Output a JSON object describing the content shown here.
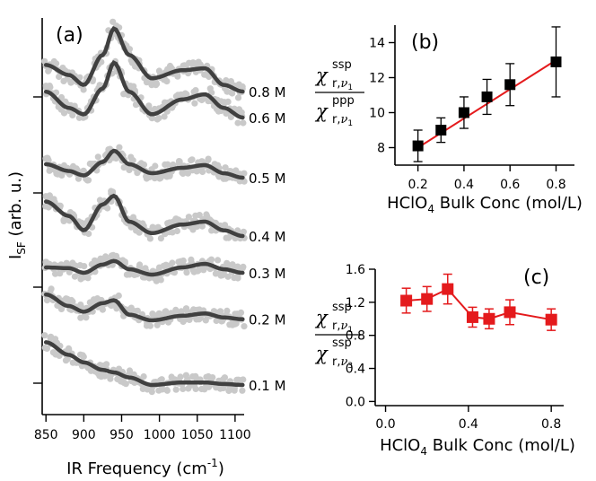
{
  "chart_data": [
    {
      "panel": "(a)",
      "type": "line",
      "xlabel": "IR Frequency (cm",
      "xlabel_sup": "-1",
      "xlabel_close": ")",
      "ylabel_main": "I",
      "ylabel_sub": "SF",
      "ylabel_rest": " (arb. u.)",
      "xlim": [
        845,
        1112
      ],
      "xticks": [
        850,
        900,
        950,
        1000,
        1050,
        1100
      ],
      "series": [
        {
          "name": "0.8 M",
          "x": [
            850,
            880,
            900,
            925,
            940,
            960,
            990,
            1030,
            1060,
            1085,
            1110
          ],
          "y": [
            0.4,
            0.25,
            0.1,
            0.55,
            0.95,
            0.55,
            0.2,
            0.32,
            0.35,
            0.1,
            0.0
          ]
        },
        {
          "name": "0.6 M",
          "x": [
            850,
            880,
            900,
            925,
            940,
            960,
            990,
            1030,
            1060,
            1085,
            1110
          ],
          "y": [
            0.4,
            0.15,
            0.05,
            0.45,
            0.85,
            0.4,
            0.05,
            0.28,
            0.36,
            0.15,
            0.0
          ]
        },
        {
          "name": "0.5 M",
          "x": [
            850,
            880,
            900,
            925,
            940,
            960,
            990,
            1030,
            1060,
            1085,
            1110
          ],
          "y": [
            0.3,
            0.15,
            0.05,
            0.35,
            0.6,
            0.3,
            0.1,
            0.22,
            0.28,
            0.1,
            0.0
          ]
        },
        {
          "name": "0.4 M",
          "x": [
            850,
            880,
            900,
            925,
            940,
            960,
            990,
            1030,
            1060,
            1085,
            1110
          ],
          "y": [
            0.6,
            0.35,
            0.1,
            0.55,
            0.7,
            0.25,
            0.05,
            0.2,
            0.25,
            0.1,
            0.0
          ]
        },
        {
          "name": "0.3 M",
          "x": [
            850,
            880,
            900,
            925,
            940,
            960,
            990,
            1030,
            1060,
            1085,
            1110
          ],
          "y": [
            0.2,
            0.18,
            0.05,
            0.28,
            0.38,
            0.15,
            0.0,
            0.2,
            0.3,
            0.15,
            0.05
          ]
        },
        {
          "name": "0.2 M",
          "x": [
            850,
            880,
            900,
            925,
            940,
            960,
            990,
            1030,
            1060,
            1085,
            1110
          ],
          "y": [
            0.45,
            0.25,
            0.15,
            0.3,
            0.35,
            0.1,
            0.0,
            0.08,
            0.12,
            0.05,
            0.02
          ]
        },
        {
          "name": "0.1 M",
          "x": [
            850,
            880,
            900,
            925,
            940,
            960,
            990,
            1030,
            1060,
            1085,
            1110
          ],
          "y": [
            0.85,
            0.6,
            0.45,
            0.3,
            0.25,
            0.15,
            0.0,
            0.05,
            0.05,
            0.02,
            0.0
          ]
        }
      ]
    },
    {
      "panel": "(b)",
      "type": "scatter",
      "xlabel_pre": "HClO",
      "xlabel_sub": "4",
      "xlabel_post": " Bulk Conc (mol/L)",
      "ylabel": {
        "chi": "χ",
        "num_sup": "ssp",
        "den_sup": "ppp",
        "sub_pre": "r,",
        "nu": "ν",
        "num_nu_sub": "1",
        "den_nu_sub": "1"
      },
      "xlim": [
        0.1,
        0.88
      ],
      "ylim": [
        7,
        15
      ],
      "xticks": [
        0.2,
        0.4,
        0.6,
        0.8
      ],
      "yticks": [
        8,
        10,
        12,
        14
      ],
      "x": [
        0.2,
        0.3,
        0.4,
        0.5,
        0.6,
        0.8
      ],
      "y": [
        8.1,
        9.0,
        10.0,
        10.9,
        11.6,
        12.9
      ],
      "yerr": [
        0.9,
        0.7,
        0.9,
        1.0,
        1.2,
        2.0
      ],
      "fit": {
        "x": [
          0.2,
          0.8
        ],
        "y": [
          8.0,
          13.0
        ],
        "color": "#e41a1c"
      },
      "marker_color": "#000000"
    },
    {
      "panel": "(c)",
      "type": "line",
      "xlabel_pre": "HClO",
      "xlabel_sub": "4",
      "xlabel_post": " Bulk Conc (mol/L)",
      "ylabel": {
        "chi": "χ",
        "num_sup": "ssp",
        "den_sup": "ssp",
        "sub_pre": "r,",
        "nu": "ν",
        "num_nu_sub": "1",
        "den_nu_sub": "3"
      },
      "xlim": [
        -0.05,
        0.86
      ],
      "ylim": [
        -0.05,
        1.6
      ],
      "xticks": [
        0.0,
        0.4,
        0.8
      ],
      "xticklabels": [
        "0.0",
        "0.4",
        "0.8"
      ],
      "yticks": [
        0.0,
        0.4,
        0.8,
        1.2,
        1.6
      ],
      "yticklabels": [
        "0.0",
        "0.4",
        "0.8",
        "1.2",
        "1.6"
      ],
      "x": [
        0.1,
        0.2,
        0.3,
        0.42,
        0.5,
        0.6,
        0.8
      ],
      "y": [
        1.22,
        1.24,
        1.36,
        1.02,
        1.0,
        1.08,
        0.99
      ],
      "yerr": [
        0.15,
        0.15,
        0.18,
        0.12,
        0.12,
        0.15,
        0.13
      ],
      "color": "#e41a1c"
    }
  ]
}
